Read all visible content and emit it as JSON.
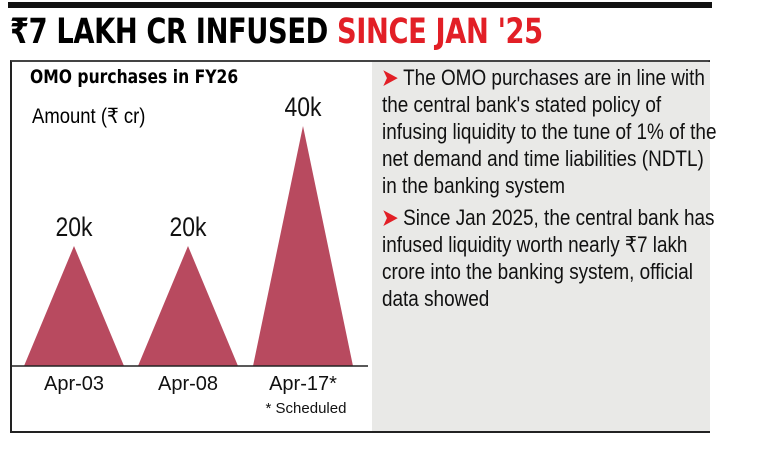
{
  "headline": {
    "black": "₹7 LAKH CR INFUSED ",
    "red": "SINCE JAN '25"
  },
  "chart_data": {
    "type": "bar",
    "title": "OMO purchases in FY26",
    "ylabel": "Amount (₹ cr)",
    "categories": [
      "Apr-03",
      "Apr-08",
      "Apr-17*"
    ],
    "values": [
      20000,
      20000,
      40000
    ],
    "data_labels": [
      "20k",
      "20k",
      "40k"
    ],
    "footnote": "* Scheduled",
    "bar_shape": "triangle",
    "bar_color": "#b84a5f",
    "grid": false
  },
  "notes": [
    "The OMO purchases are in line with the central bank's stated policy of infusing liquidity to the tune of 1% of the net demand and time liabilities (NDTL) in the banking system",
    "Since Jan 2025, the central bank has infused liquidity worth nearly ₹7 lakh crore into the banking system, official data showed"
  ],
  "colors": {
    "accent": "#e21f26",
    "panel": "#e9e9e7"
  }
}
